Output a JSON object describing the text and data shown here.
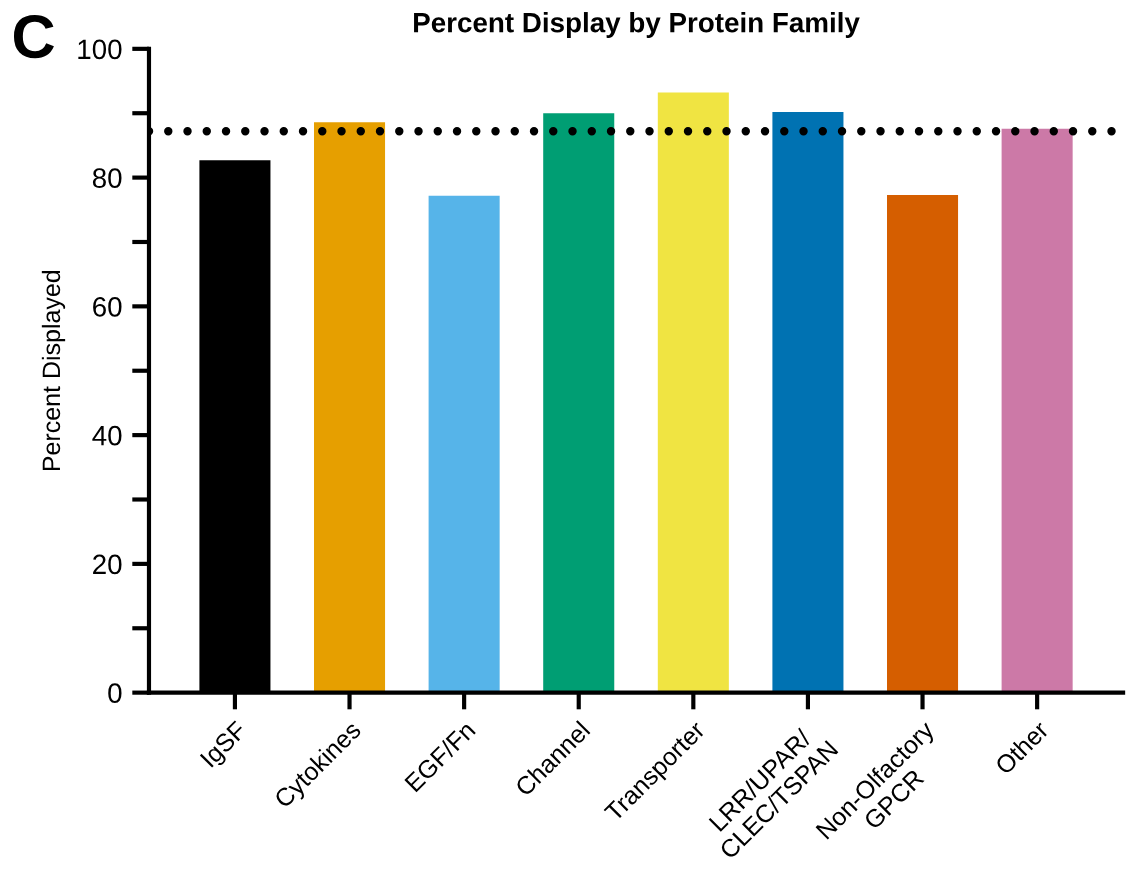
{
  "chart_data": {
    "type": "bar",
    "title": "Percent Display by Protein Family",
    "ylabel": "Percent Displayed",
    "annotations": [
      "C"
    ],
    "categories": [
      "IgSF",
      "Cytokines",
      "EGF/Fn",
      "Channel",
      "Transporter",
      "LRR/UPAR/\nCLEC/TSPAN",
      "Non-Olfactory\nGPCR",
      "Other"
    ],
    "values": [
      82.7,
      88.6,
      77.2,
      90.0,
      93.2,
      90.2,
      77.3,
      87.6
    ],
    "colors": [
      "#000000",
      "#e69f00",
      "#56b4e9",
      "#009e73",
      "#f0e442",
      "#0072b2",
      "#d55e00",
      "#cc79a7"
    ],
    "ylim": [
      0,
      100
    ],
    "yticks": [
      0,
      {
        "value": 10,
        "label": null
      },
      20,
      {
        "value": 30,
        "label": null
      },
      40,
      {
        "value": 50,
        "label": null
      },
      60,
      {
        "value": 70,
        "label": null
      },
      80,
      {
        "value": 90,
        "label": null
      },
      100
    ],
    "ref_lines": [
      {
        "axis": "y",
        "value": 87.2,
        "label": null,
        "color": "#000000",
        "line_style": "dotted"
      }
    ],
    "grid": false
  }
}
